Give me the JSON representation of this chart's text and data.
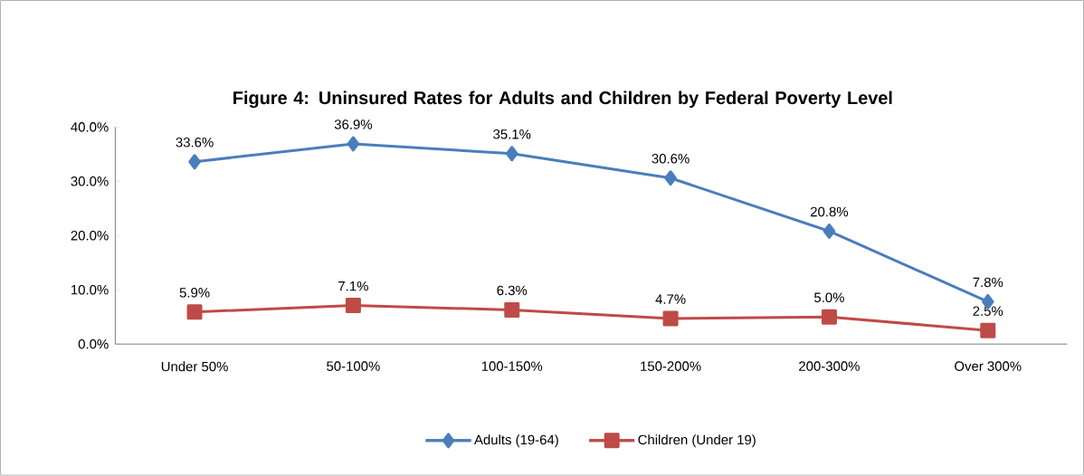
{
  "chart_data": {
    "type": "line",
    "title": "Figure 4: Uninsured Rates for Adults and Children by Federal Poverty Level",
    "categories": [
      "Under 50%",
      "50-100%",
      "100-150%",
      "150-200%",
      "200-300%",
      "Over 300%"
    ],
    "series": [
      {
        "name": "Adults (19-64)",
        "color": "#4a7ebb",
        "marker": "diamond",
        "values": [
          33.6,
          36.9,
          35.1,
          30.6,
          20.8,
          7.8
        ],
        "value_labels": [
          "33.6%",
          "36.9%",
          "35.1%",
          "30.6%",
          "20.8%",
          "7.8%"
        ]
      },
      {
        "name": "Children (Under 19)",
        "color": "#be4b48",
        "marker": "square",
        "values": [
          5.9,
          7.1,
          6.3,
          4.7,
          5.0,
          2.5
        ],
        "value_labels": [
          "5.9%",
          "7.1%",
          "6.3%",
          "4.7%",
          "5.0%",
          "2.5%"
        ]
      }
    ],
    "ylim": [
      0,
      40
    ],
    "yticks": [
      {
        "value": 0,
        "label": "0.0%"
      },
      {
        "value": 10,
        "label": "10.0%"
      },
      {
        "value": 20,
        "label": "20.0%"
      },
      {
        "value": 30,
        "label": "30.0%"
      },
      {
        "value": 40,
        "label": "40.0%"
      }
    ],
    "grid": false,
    "legend": "bottom",
    "line_style": "solid"
  }
}
